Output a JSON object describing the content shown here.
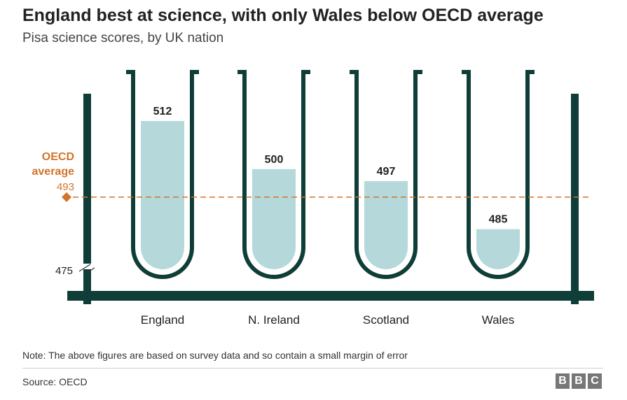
{
  "title": "England best at science, with only Wales below OECD average",
  "subtitle": "Pisa science scores, by UK nation",
  "note": "Note: The above figures are based on survey data and so contain a small margin of error",
  "source": "Source: OECD",
  "logo": [
    "B",
    "B",
    "C"
  ],
  "colors": {
    "frame": "#0f3d37",
    "liquid": "#b5d9db",
    "reference": "#d2742a",
    "text": "#222222"
  },
  "chart_data": {
    "type": "bar",
    "categories": [
      "England",
      "N. Ireland",
      "Scotland",
      "Wales"
    ],
    "values": [
      512,
      500,
      497,
      485
    ],
    "data_labels": [
      "512",
      "500",
      "497",
      "485"
    ],
    "ylim": [
      475,
      520
    ],
    "y_baseline_label": "475",
    "y_axis_break": true,
    "reference_line": {
      "label_line1": "OECD",
      "label_line2": "average",
      "value_label": "493",
      "value": 493,
      "style": "dashed"
    }
  }
}
